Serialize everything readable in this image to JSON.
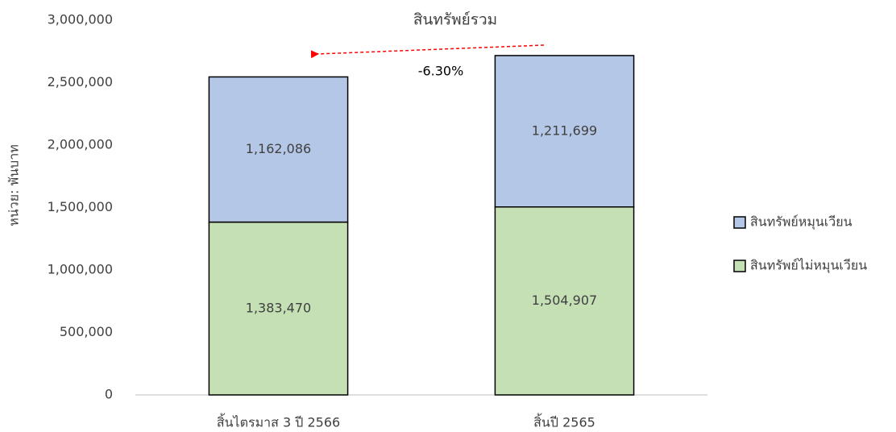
{
  "chart_data": {
    "type": "stacked_bar",
    "title": "สินทรัพย์รวม",
    "annotation": "-6.30%",
    "y_label": "หน่วย: พันบาท",
    "categories": [
      "สิ้นไตรมาส 3 ปี 2566",
      "สิ้นปี 2565"
    ],
    "series": [
      {
        "name": "สินทรัพย์ไม่หมุนเวียน",
        "color": "#c5e0b4",
        "values": [
          1383470,
          1504907
        ],
        "value_labels": [
          "1,383,470",
          "1,504,907"
        ]
      },
      {
        "name": "สินทรัพย์หมุนเวียน",
        "color": "#b4c7e7",
        "values": [
          1162086,
          1211699
        ],
        "value_labels": [
          "1,162,086",
          "1,211,699"
        ]
      }
    ],
    "ylim": [
      0,
      3000000
    ],
    "yticks": [
      0,
      {
        "value": 500000,
        "label": "500,000"
      },
      {
        "value": 1000000,
        "label": "1,000,000"
      },
      {
        "value": 1500000,
        "label": "1,500,000"
      },
      {
        "value": 2000000,
        "label": "2,000,000"
      },
      {
        "value": 2500000,
        "label": "2,500,000"
      },
      {
        "value": 3000000,
        "label": "3,000,000"
      }
    ],
    "legend": "right"
  }
}
